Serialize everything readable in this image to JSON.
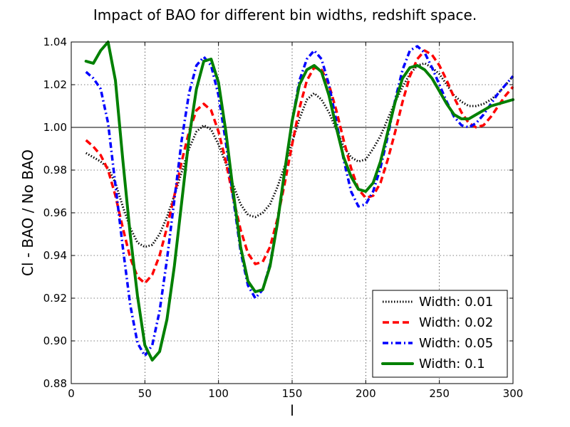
{
  "chart_data": {
    "type": "line",
    "title": "Impact of BAO for different bin widths, redshift space.",
    "xlabel": "l",
    "ylabel": "Cl - BAO / No BAO",
    "xlim": [
      0,
      300
    ],
    "ylim": [
      0.88,
      1.04
    ],
    "xticks": [
      0,
      50,
      100,
      150,
      200,
      250,
      300
    ],
    "yticks": [
      0.88,
      0.9,
      0.92,
      0.94,
      0.96,
      0.98,
      1.0,
      1.02,
      1.04
    ],
    "xtick_labels": [
      "0",
      "50",
      "100",
      "150",
      "200",
      "250",
      "300"
    ],
    "ytick_labels": [
      "0.88",
      "0.90",
      "0.92",
      "0.94",
      "0.96",
      "0.98",
      "1.00",
      "1.02",
      "1.04"
    ],
    "grid": true,
    "reference_line": 1.0,
    "legend_position": "lower-right",
    "series": [
      {
        "name": "Width: 0.01",
        "color": "#000000",
        "style": "dotted",
        "x": [
          10,
          15,
          20,
          25,
          30,
          35,
          40,
          45,
          50,
          55,
          60,
          65,
          70,
          75,
          80,
          85,
          90,
          95,
          100,
          105,
          110,
          115,
          120,
          125,
          130,
          135,
          140,
          145,
          150,
          155,
          160,
          165,
          170,
          175,
          180,
          185,
          190,
          195,
          200,
          205,
          210,
          215,
          220,
          225,
          230,
          235,
          240,
          245,
          250,
          255,
          260,
          265,
          270,
          275,
          280,
          285,
          290,
          295,
          300
        ],
        "y": [
          0.988,
          0.986,
          0.984,
          0.981,
          0.974,
          0.963,
          0.953,
          0.946,
          0.944,
          0.945,
          0.95,
          0.958,
          0.968,
          0.979,
          0.99,
          0.998,
          1.001,
          0.999,
          0.992,
          0.983,
          0.973,
          0.964,
          0.959,
          0.958,
          0.96,
          0.964,
          0.972,
          0.982,
          0.993,
          1.004,
          1.013,
          1.016,
          1.013,
          1.007,
          0.999,
          0.991,
          0.986,
          0.984,
          0.985,
          0.99,
          0.996,
          1.004,
          1.012,
          1.019,
          1.025,
          1.029,
          1.03,
          1.028,
          1.025,
          1.02,
          1.015,
          1.012,
          1.01,
          1.01,
          1.011,
          1.013,
          1.016,
          1.02,
          1.024
        ]
      },
      {
        "name": "Width: 0.02",
        "color": "#ff0000",
        "style": "dashed",
        "x": [
          10,
          15,
          20,
          25,
          30,
          35,
          40,
          45,
          50,
          55,
          60,
          65,
          70,
          75,
          80,
          85,
          90,
          95,
          100,
          105,
          110,
          115,
          120,
          125,
          130,
          135,
          140,
          145,
          150,
          155,
          160,
          165,
          170,
          175,
          180,
          185,
          190,
          195,
          200,
          205,
          210,
          215,
          220,
          225,
          230,
          235,
          240,
          245,
          250,
          255,
          260,
          265,
          270,
          275,
          280,
          285,
          290,
          295,
          300
        ],
        "y": [
          0.994,
          0.991,
          0.987,
          0.98,
          0.968,
          0.953,
          0.939,
          0.93,
          0.927,
          0.931,
          0.94,
          0.953,
          0.968,
          0.984,
          0.998,
          1.008,
          1.011,
          1.008,
          0.998,
          0.984,
          0.967,
          0.952,
          0.941,
          0.936,
          0.937,
          0.944,
          0.957,
          0.974,
          0.992,
          1.009,
          1.022,
          1.028,
          1.027,
          1.02,
          1.008,
          0.994,
          0.981,
          0.971,
          0.967,
          0.968,
          0.974,
          0.985,
          0.998,
          1.012,
          1.024,
          1.032,
          1.036,
          1.034,
          1.029,
          1.022,
          1.014,
          1.007,
          1.002,
          1.0,
          1.001,
          1.005,
          1.01,
          1.015,
          1.019
        ]
      },
      {
        "name": "Width: 0.05",
        "color": "#0000ff",
        "style": "dashdot",
        "x": [
          10,
          15,
          20,
          25,
          30,
          35,
          40,
          45,
          50,
          55,
          60,
          65,
          70,
          75,
          80,
          85,
          90,
          95,
          100,
          105,
          110,
          115,
          120,
          125,
          130,
          135,
          140,
          145,
          150,
          155,
          160,
          165,
          170,
          175,
          180,
          185,
          190,
          195,
          200,
          205,
          210,
          215,
          220,
          225,
          230,
          235,
          240,
          245,
          250,
          255,
          260,
          265,
          270,
          275,
          280,
          285,
          290,
          295,
          300
        ],
        "y": [
          1.026,
          1.023,
          1.018,
          1.002,
          0.973,
          0.944,
          0.917,
          0.899,
          0.893,
          0.898,
          0.914,
          0.938,
          0.966,
          0.994,
          1.016,
          1.029,
          1.033,
          1.029,
          1.015,
          0.993,
          0.967,
          0.942,
          0.926,
          0.92,
          0.924,
          0.936,
          0.955,
          0.979,
          1.003,
          1.022,
          1.032,
          1.036,
          1.032,
          1.02,
          1.003,
          0.985,
          0.97,
          0.963,
          0.964,
          0.97,
          0.981,
          0.996,
          1.013,
          1.027,
          1.036,
          1.038,
          1.035,
          1.028,
          1.02,
          1.012,
          1.005,
          1.001,
          1.0,
          1.002,
          1.006,
          1.011,
          1.016,
          1.02,
          1.024
        ]
      },
      {
        "name": "Width: 0.1",
        "color": "#008000",
        "style": "solid",
        "x": [
          10,
          15,
          20,
          25,
          30,
          35,
          40,
          45,
          50,
          55,
          60,
          65,
          70,
          75,
          80,
          85,
          90,
          95,
          100,
          105,
          110,
          115,
          120,
          125,
          130,
          135,
          140,
          145,
          150,
          155,
          160,
          165,
          170,
          175,
          180,
          185,
          190,
          195,
          200,
          205,
          210,
          215,
          220,
          225,
          230,
          235,
          240,
          245,
          250,
          255,
          260,
          265,
          270,
          275,
          280,
          285,
          290,
          295,
          300
        ],
        "y": [
          1.031,
          1.03,
          1.036,
          1.04,
          1.022,
          0.985,
          0.95,
          0.921,
          0.898,
          0.891,
          0.895,
          0.91,
          0.935,
          0.965,
          0.995,
          1.018,
          1.031,
          1.032,
          1.021,
          0.998,
          0.97,
          0.944,
          0.928,
          0.923,
          0.924,
          0.935,
          0.955,
          0.98,
          1.003,
          1.02,
          1.027,
          1.029,
          1.026,
          1.015,
          1.0,
          0.986,
          0.977,
          0.971,
          0.97,
          0.974,
          0.984,
          0.998,
          1.012,
          1.023,
          1.028,
          1.029,
          1.027,
          1.023,
          1.017,
          1.011,
          1.006,
          1.004,
          1.004,
          1.006,
          1.008,
          1.01,
          1.011,
          1.012,
          1.013
        ]
      }
    ]
  }
}
